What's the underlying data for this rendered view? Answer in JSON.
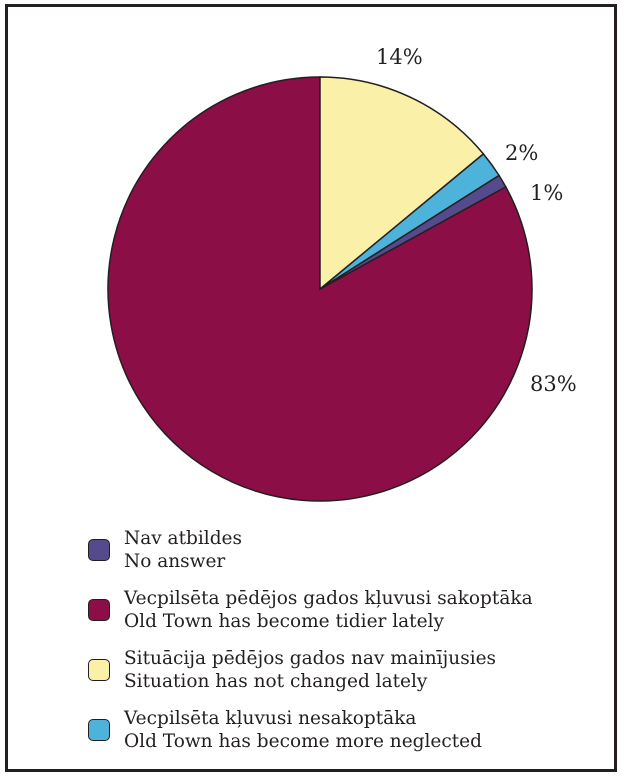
{
  "chart_data": {
    "type": "pie",
    "slices": [
      {
        "value": 83,
        "label": "83%",
        "color": "#8c0e46"
      },
      {
        "value": 1,
        "label": "1%",
        "color": "#544a8c"
      },
      {
        "value": 2,
        "label": "2%",
        "color": "#4db3db"
      },
      {
        "value": 14,
        "label": "14%",
        "color": "#faf0a8"
      }
    ],
    "legend": [
      {
        "line1": "Nav atbildes",
        "line2": "No answer",
        "color": "#544a8c"
      },
      {
        "line1": "Vecpilsēta pēdējos gados kļuvusi sakoptāka",
        "line2": "Old Town has become tidier lately",
        "color": "#8c0e46"
      },
      {
        "line1": "Situācija pēdējos gados nav mainījusies",
        "line2": "Situation has not changed lately",
        "color": "#faf0a8"
      },
      {
        "line1": "Vecpilsēta kļuvusi nesakoptāka",
        "line2": "Old Town has become more neglected",
        "color": "#4db3db"
      }
    ]
  }
}
